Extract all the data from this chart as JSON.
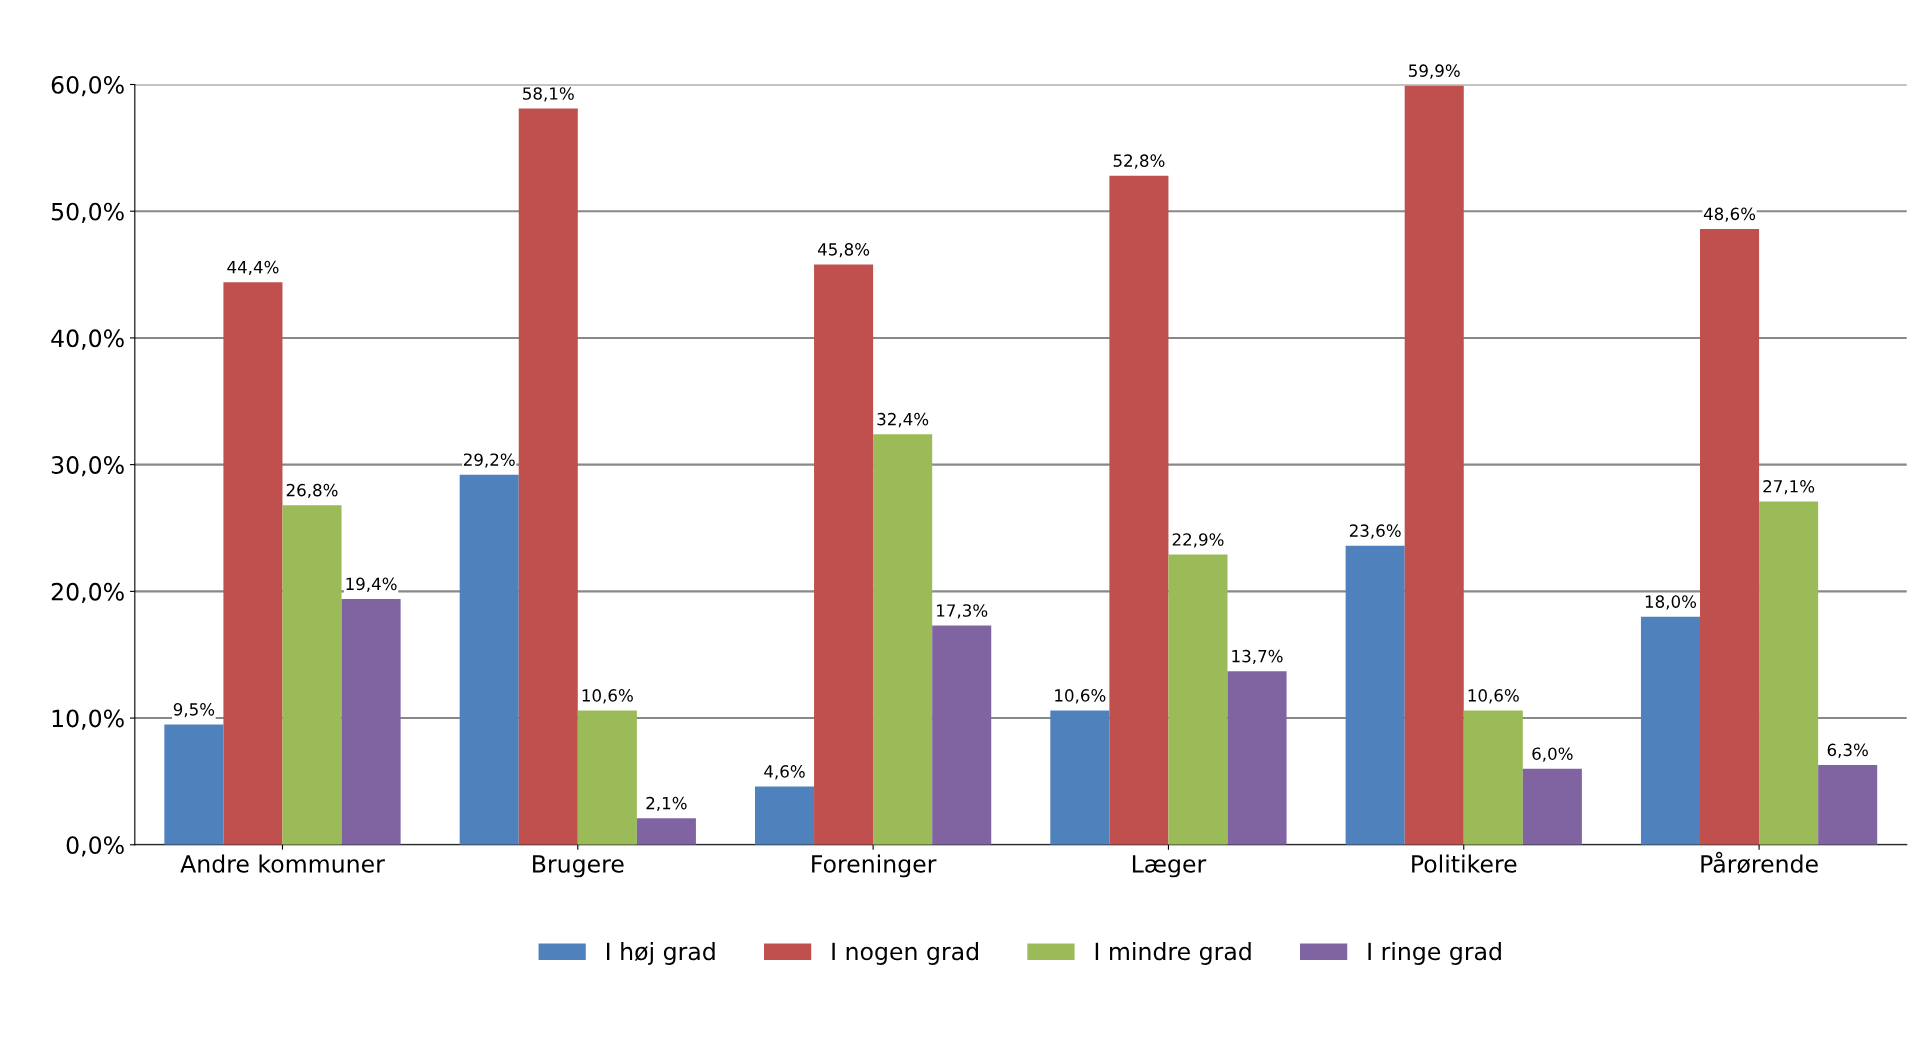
{
  "chart_data": {
    "type": "bar",
    "categories": [
      "Andre kommuner",
      "Brugere",
      "Foreninger",
      "Læger",
      "Politikere",
      "Pårørende"
    ],
    "series": [
      {
        "name": "I høj grad",
        "color": "#4f81bd",
        "values": [
          9.5,
          29.2,
          4.6,
          10.6,
          23.6,
          18.0
        ],
        "value_labels": [
          "9,5%",
          "29,2%",
          "4,6%",
          "10,6%",
          "23,6%",
          "18,0%"
        ]
      },
      {
        "name": "I nogen grad",
        "color": "#c0504d",
        "values": [
          44.4,
          58.1,
          45.8,
          52.8,
          59.9,
          48.6
        ],
        "value_labels": [
          "44,4%",
          "58,1%",
          "45,8%",
          "52,8%",
          "59,9%",
          "48,6%"
        ]
      },
      {
        "name": "I mindre grad",
        "color": "#9bbb59",
        "values": [
          26.8,
          10.6,
          32.4,
          22.9,
          10.6,
          27.1
        ],
        "value_labels": [
          "26,8%",
          "10,6%",
          "32,4%",
          "22,9%",
          "10,6%",
          "27,1%"
        ]
      },
      {
        "name": "I ringe grad",
        "color": "#8064a2",
        "values": [
          19.4,
          2.1,
          17.3,
          13.7,
          6.0,
          6.3
        ],
        "value_labels": [
          "19,4%",
          "2,1%",
          "17,3%",
          "13,7%",
          "6,0%",
          "6,3%"
        ]
      }
    ],
    "ylim": [
      0,
      60
    ],
    "yticks": [
      {
        "value": 0,
        "label": "0,0%"
      },
      {
        "value": 10,
        "label": "10,0%"
      },
      {
        "value": 20,
        "label": "20,0%"
      },
      {
        "value": 30,
        "label": "30,0%"
      },
      {
        "value": 40,
        "label": "40,0%"
      },
      {
        "value": 50,
        "label": "50,0%"
      },
      {
        "value": 60,
        "label": "60,0%"
      }
    ],
    "grid": "y",
    "legend": "bottom"
  }
}
